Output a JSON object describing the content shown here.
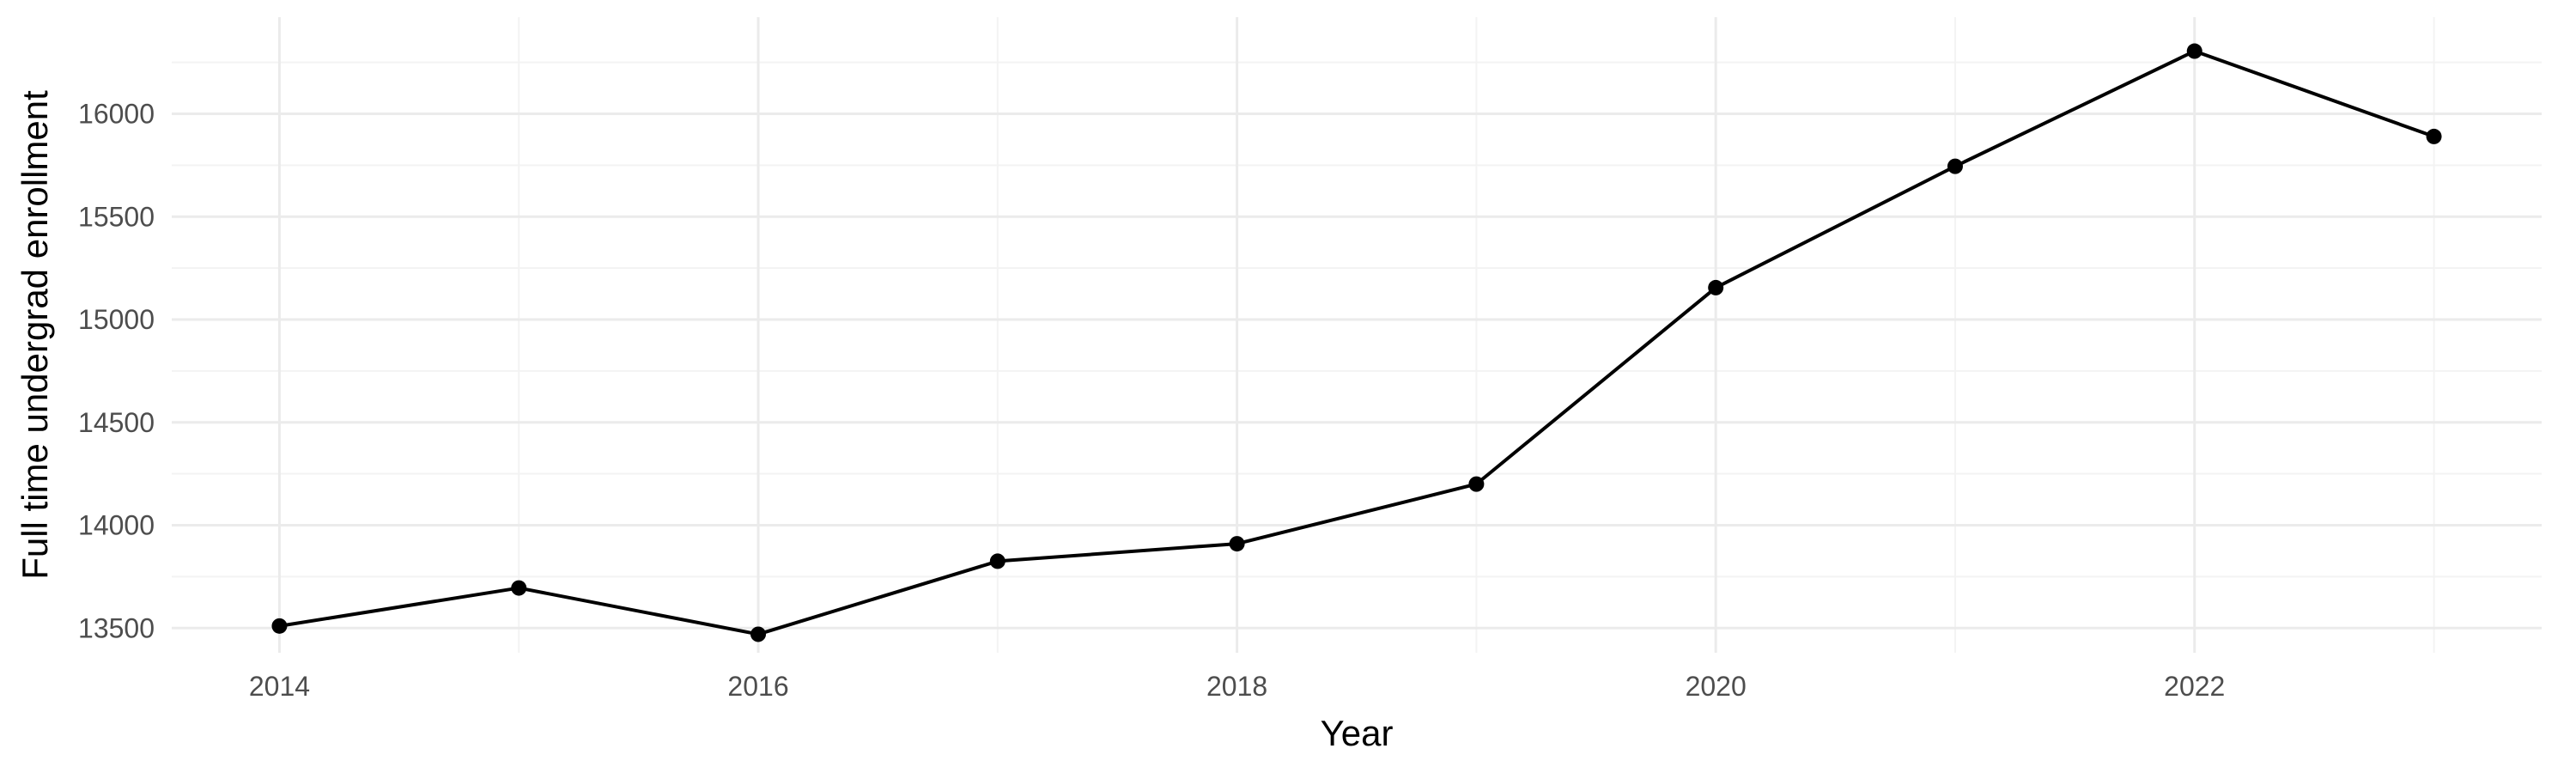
{
  "chart_data": {
    "type": "line",
    "title": "",
    "xlabel": "Year",
    "ylabel": "Full time undergrad enrollment",
    "x": [
      2014,
      2015,
      2016,
      2017,
      2018,
      2019,
      2020,
      2021,
      2022,
      2023
    ],
    "series": [
      {
        "values": [
          13510,
          13695,
          13470,
          13825,
          13910,
          14200,
          15155,
          15745,
          16305,
          15890
        ]
      }
    ],
    "xlim": [
      2013.55,
      2023.45
    ],
    "ylim": [
      13380,
      16470
    ],
    "x_ticks": [
      2014,
      2016,
      2018,
      2020,
      2022
    ],
    "x_tick_labels": [
      "2014",
      "2016",
      "2018",
      "2020",
      "2022"
    ],
    "y_ticks": [
      13500,
      14000,
      14500,
      15000,
      15500,
      16000
    ],
    "y_tick_labels": [
      "13500",
      "14000",
      "14500",
      "15000",
      "15500",
      "16000"
    ],
    "grid": true,
    "legend": "none",
    "colors": {
      "line": "#000000",
      "point": "#000000",
      "grid_major": "#ebebeb",
      "grid_minor": "#f3f3f3"
    }
  }
}
